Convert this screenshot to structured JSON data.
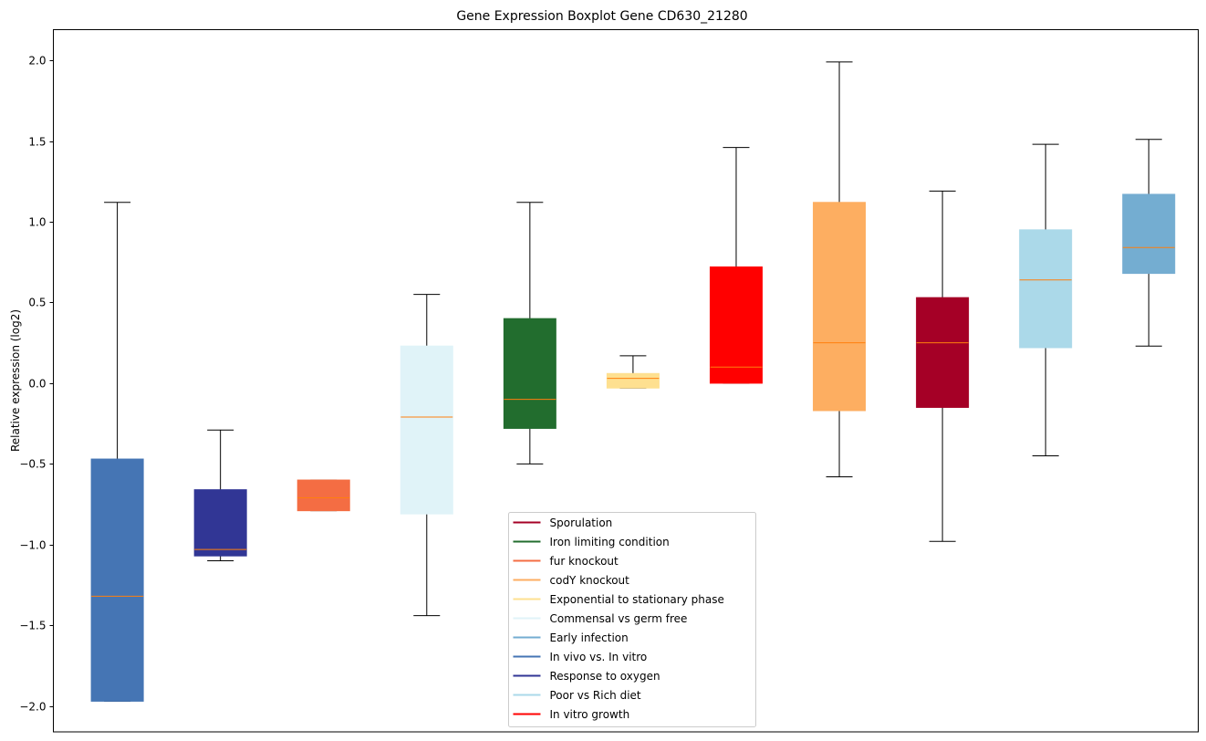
{
  "chart_data": {
    "type": "boxplot",
    "title": "Gene Expression Boxplot Gene CD630_21280",
    "xlabel": "",
    "ylabel": "Relative expression (log2)",
    "ylim": [
      -2.16,
      2.19
    ],
    "yticks": [
      -2.0,
      -1.5,
      -1.0,
      -0.5,
      0.0,
      0.5,
      1.0,
      1.5,
      2.0
    ],
    "ytick_labels": [
      "−2.0",
      "−1.5",
      "−1.0",
      "−0.5",
      "0.0",
      "0.5",
      "1.0",
      "1.5",
      "2.0"
    ],
    "grid": false,
    "legend_position": "bottom-center",
    "median_color": "#ff7f0e",
    "boxes": [
      {
        "name": "In vivo vs. In vitro",
        "color": "#4575b4",
        "whisker_low": -1.97,
        "q1": -1.97,
        "median": -1.32,
        "q3": -0.47,
        "whisker_high": 1.12
      },
      {
        "name": "Response to oxygen",
        "color": "#313695",
        "whisker_low": -1.1,
        "q1": -1.07,
        "median": -1.03,
        "q3": -0.66,
        "whisker_high": -0.29
      },
      {
        "name": "fur knockout",
        "color": "#f46d43",
        "whisker_low": -0.79,
        "q1": -0.79,
        "median": -0.71,
        "q3": -0.6,
        "whisker_high": -0.6
      },
      {
        "name": "Commensal vs germ free",
        "color": "#e0f3f8",
        "whisker_low": -1.44,
        "q1": -0.81,
        "median": -0.21,
        "q3": 0.23,
        "whisker_high": 0.55
      },
      {
        "name": "Iron limiting condition",
        "color": "#226d2e",
        "whisker_low": -0.5,
        "q1": -0.28,
        "median": -0.1,
        "q3": 0.4,
        "whisker_high": 1.12
      },
      {
        "name": "Exponential to stationary phase",
        "color": "#fee090",
        "whisker_low": -0.03,
        "q1": -0.03,
        "median": 0.03,
        "q3": 0.06,
        "whisker_high": 0.17
      },
      {
        "name": "In vitro growth",
        "color": "#ff0000",
        "whisker_low": 0.0,
        "q1": 0.0,
        "median": 0.1,
        "q3": 0.72,
        "whisker_high": 1.46
      },
      {
        "name": "codY knockout",
        "color": "#fdae61",
        "whisker_low": -0.58,
        "q1": -0.17,
        "median": 0.25,
        "q3": 1.12,
        "whisker_high": 1.99
      },
      {
        "name": "Sporulation",
        "color": "#a50026",
        "whisker_low": -0.98,
        "q1": -0.15,
        "median": 0.25,
        "q3": 0.53,
        "whisker_high": 1.19
      },
      {
        "name": "Poor vs Rich diet",
        "color": "#abd9e9",
        "whisker_low": -0.45,
        "q1": 0.22,
        "median": 0.64,
        "q3": 0.95,
        "whisker_high": 1.48
      },
      {
        "name": "Early infection",
        "color": "#74add1",
        "whisker_low": 0.23,
        "q1": 0.68,
        "median": 0.84,
        "q3": 1.17,
        "whisker_high": 1.51
      }
    ],
    "legend": [
      {
        "label": "Sporulation",
        "color": "#a50026"
      },
      {
        "label": "Iron limiting condition",
        "color": "#226d2e"
      },
      {
        "label": "fur knockout",
        "color": "#f46d43"
      },
      {
        "label": "codY knockout",
        "color": "#fdae61"
      },
      {
        "label": "Exponential to stationary phase",
        "color": "#fee090"
      },
      {
        "label": "Commensal vs germ free",
        "color": "#e0f3f8"
      },
      {
        "label": "Early infection",
        "color": "#74add1"
      },
      {
        "label": "In vivo vs. In vitro",
        "color": "#4575b4"
      },
      {
        "label": "Response to oxygen",
        "color": "#313695"
      },
      {
        "label": "Poor vs Rich diet",
        "color": "#abd9e9"
      },
      {
        "label": "In vitro growth",
        "color": "#ff0000"
      }
    ]
  }
}
